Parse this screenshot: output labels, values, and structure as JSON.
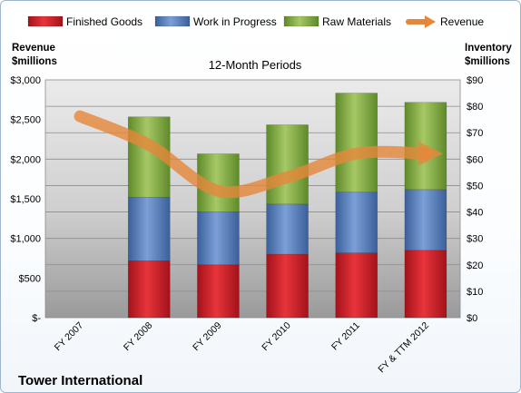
{
  "chart_data": {
    "type": "bar",
    "title": "12-Month Periods",
    "company": "Tower International",
    "categories": [
      "FY 2007",
      "FY 2008",
      "FY 2009",
      "FY 2010",
      "FY 2011",
      "FY & TTM 2012"
    ],
    "left_axis": {
      "label_line1": "Revenue",
      "label_line2": "$millions",
      "ylim": [
        0,
        3000
      ],
      "ticks": [
        0,
        500,
        1000,
        1500,
        2000,
        2500,
        3000
      ],
      "tick_labels": [
        "$-",
        "$500",
        "$1,000",
        "$1,500",
        "$2,000",
        "$2,500",
        "$3,000"
      ]
    },
    "right_axis": {
      "label_line1": "Inventory",
      "label_line2": "$millions",
      "ylim": [
        0,
        90
      ],
      "ticks": [
        0,
        10,
        20,
        30,
        40,
        50,
        60,
        70,
        80,
        90
      ],
      "tick_labels": [
        "$0",
        "$10",
        "$20",
        "$30",
        "$40",
        "$50",
        "$60",
        "$70",
        "$80",
        "$90"
      ]
    },
    "series": [
      {
        "name": "Finished Goods",
        "axis": "right",
        "color": "#e0242c",
        "values": [
          null,
          21.5,
          20,
          24,
          24.5,
          25.5
        ]
      },
      {
        "name": "Work in Progress",
        "axis": "right",
        "color": "#5b82c0",
        "values": [
          null,
          24,
          20,
          19,
          23,
          23
        ]
      },
      {
        "name": "Raw Materials",
        "axis": "right",
        "color": "#8cb04a",
        "values": [
          null,
          30.5,
          22,
          30,
          37.5,
          33
        ]
      },
      {
        "name": "Revenue",
        "axis": "left",
        "type": "line",
        "color": "#e5873a",
        "values": [
          2540,
          2180,
          1600,
          1770,
          2070,
          2070
        ]
      }
    ],
    "legend_position": "top",
    "grid": true
  }
}
